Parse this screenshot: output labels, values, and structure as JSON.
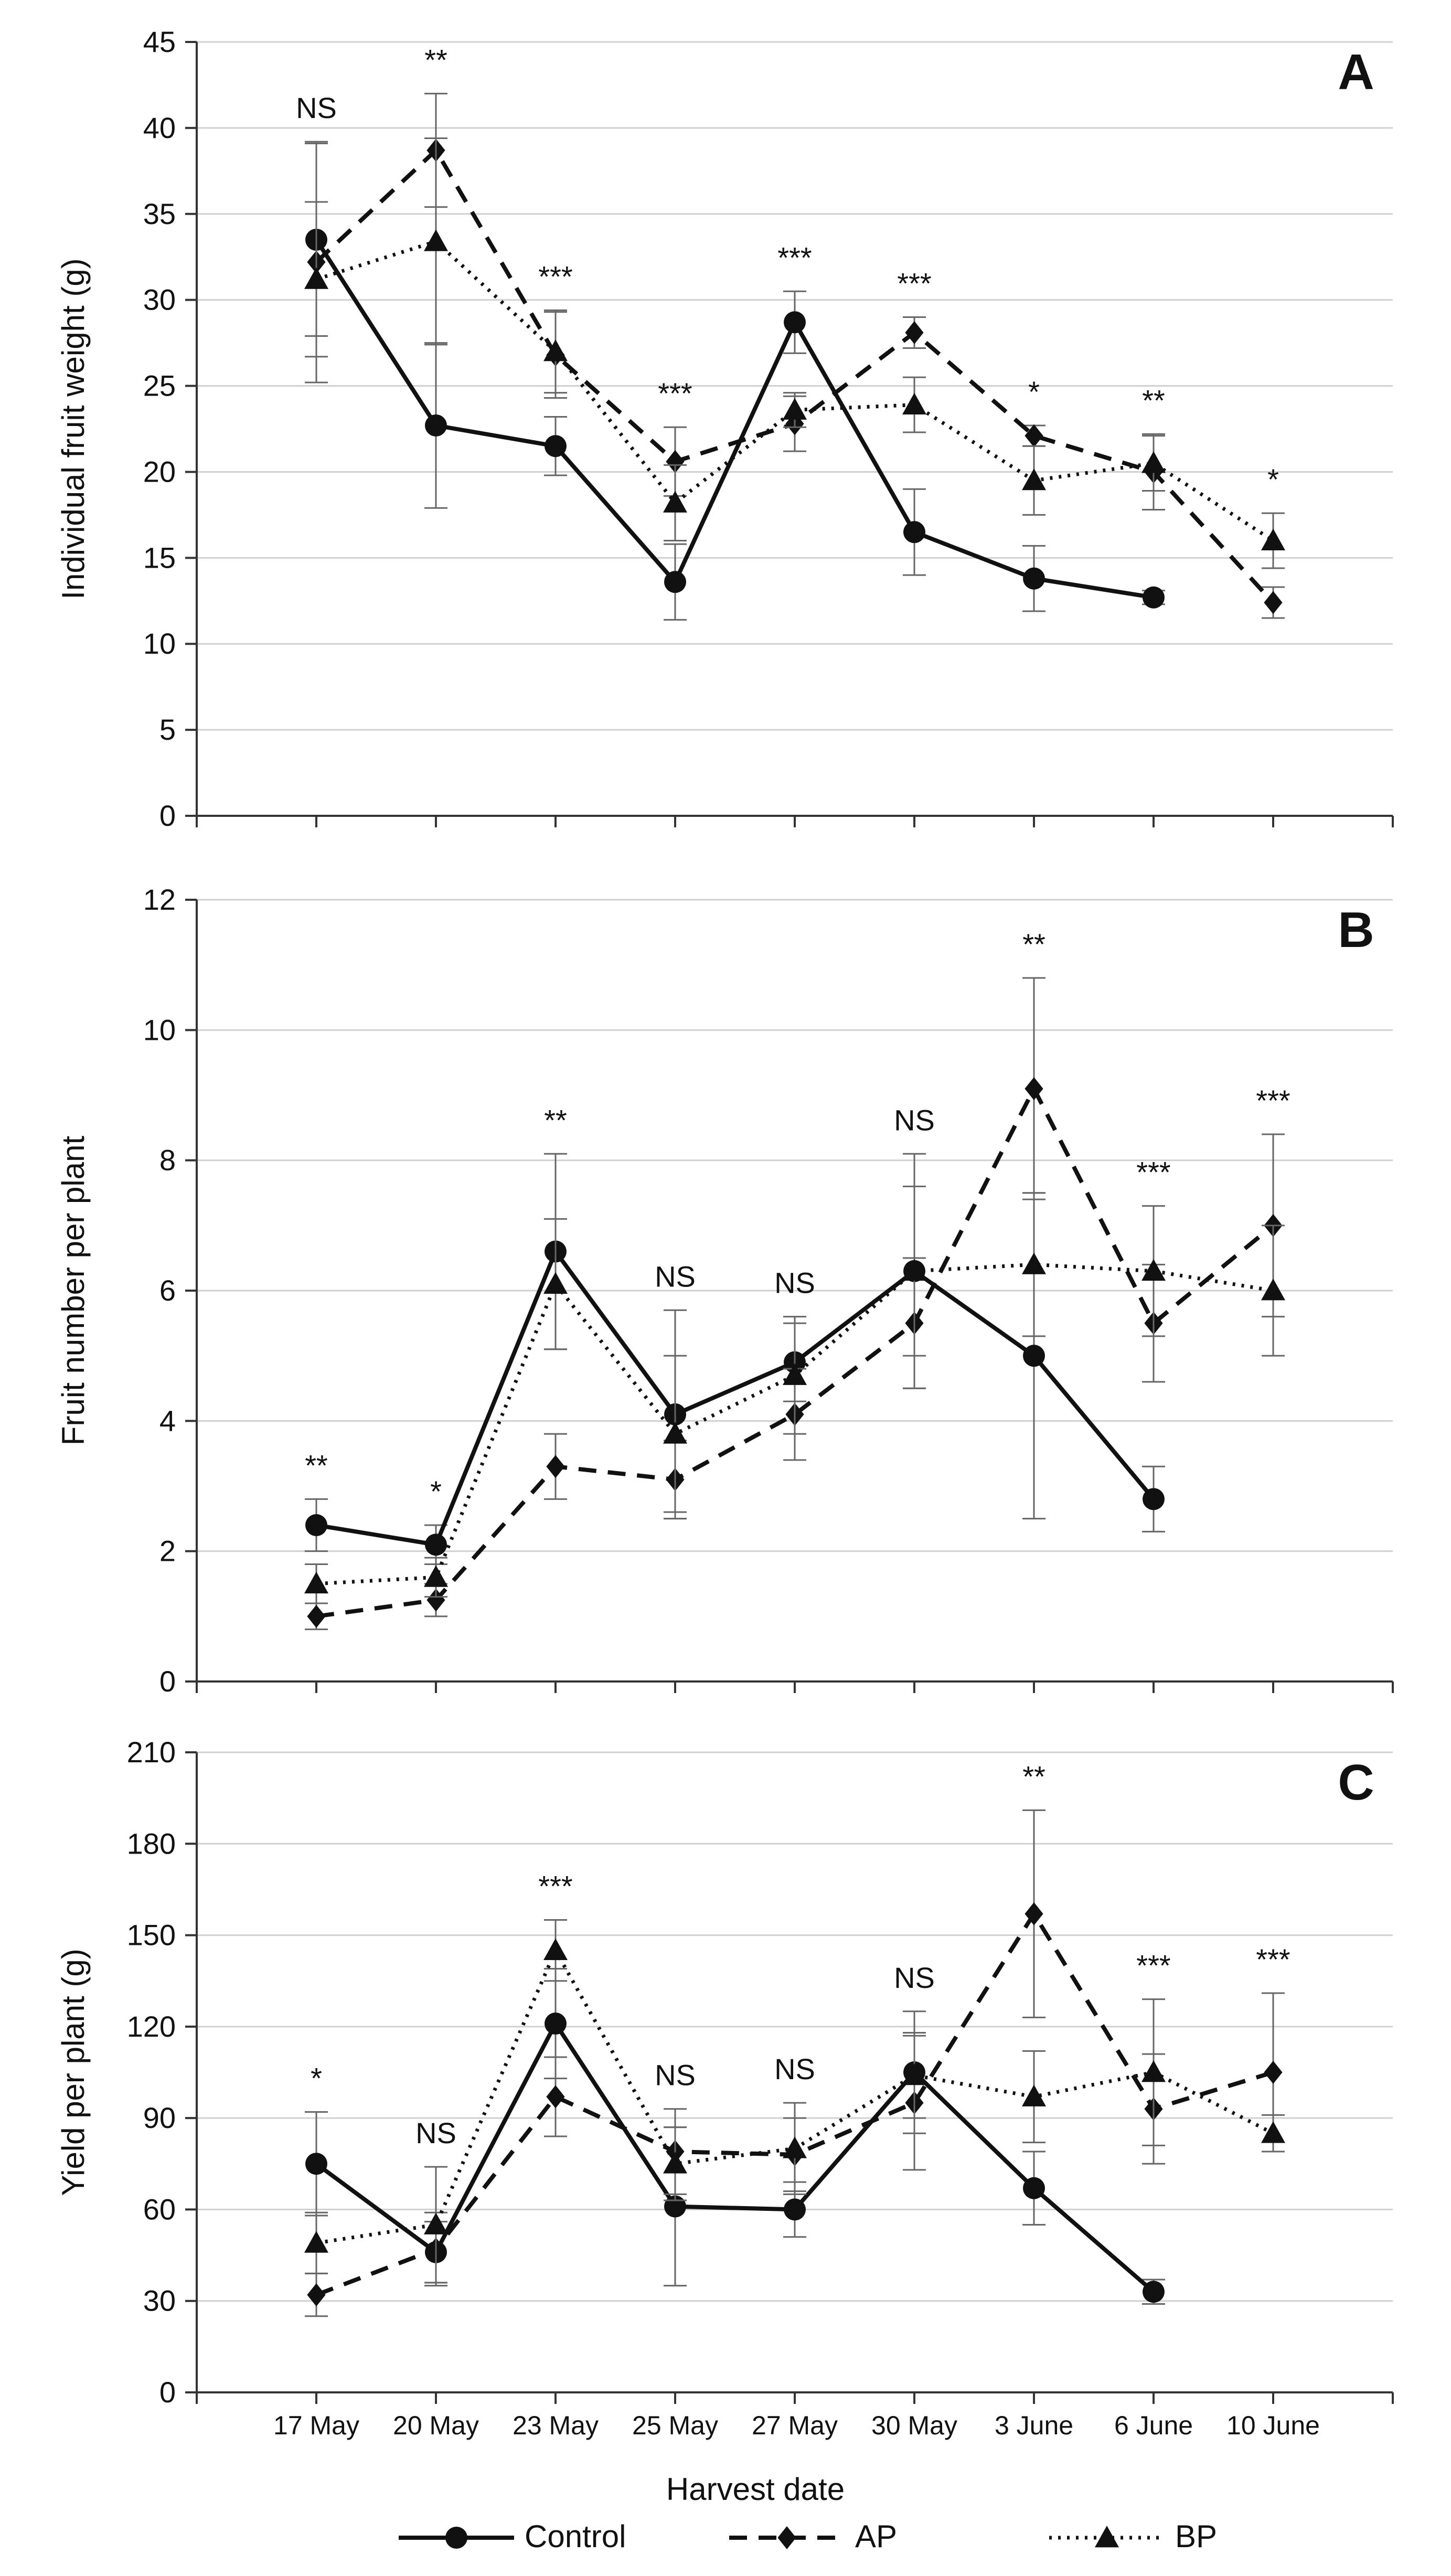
{
  "figure": {
    "xlabel": "Harvest date",
    "legend": [
      {
        "name": "Control",
        "style": "solid",
        "marker": "circle"
      },
      {
        "name": "AP",
        "style": "dashed",
        "marker": "diamond"
      },
      {
        "name": "BP",
        "style": "dotted",
        "marker": "triangle"
      }
    ]
  },
  "chart_data": [
    {
      "type": "line",
      "panel_label": "A",
      "ylabel": "Individual fruit weight (g)",
      "ylim": [
        0,
        45
      ],
      "ystep": 5,
      "grid": true,
      "categories": [
        "17 May",
        "20 May",
        "23 May",
        "25  May",
        "27 May",
        "30 May",
        "3 June",
        "6 June",
        "10 June"
      ],
      "series": [
        {
          "name": "Control",
          "values": [
            33.5,
            22.7,
            21.5,
            13.6,
            28.7,
            16.5,
            13.8,
            12.7,
            null
          ],
          "errors": [
            5.6,
            4.8,
            1.7,
            2.2,
            1.8,
            2.5,
            1.9,
            0.4,
            null
          ]
        },
        {
          "name": "AP",
          "values": [
            32.2,
            38.7,
            26.8,
            20.6,
            22.8,
            28.1,
            22.1,
            20.0,
            12.4
          ],
          "errors": [
            7.0,
            3.3,
            2.5,
            2.0,
            1.6,
            0.9,
            0.6,
            2.2,
            0.9
          ]
        },
        {
          "name": "BP",
          "values": [
            31.2,
            33.4,
            27.0,
            18.2,
            23.6,
            23.9,
            19.5,
            20.5,
            16.0
          ],
          "errors": [
            4.5,
            6.0,
            2.4,
            2.2,
            1.0,
            1.6,
            2.0,
            1.6,
            1.6
          ]
        }
      ],
      "annotations": [
        "NS",
        "**",
        "***",
        "***",
        "***",
        "***",
        "*",
        "**",
        "*"
      ]
    },
    {
      "type": "line",
      "panel_label": "B",
      "ylabel": "Fruit number per plant",
      "ylim": [
        0,
        12
      ],
      "ystep": 2,
      "grid": true,
      "categories": [
        "17 May",
        "20 May",
        "23 May",
        "25  May",
        "27 May",
        "30 May",
        "3 June",
        "6 June",
        "10 June"
      ],
      "series": [
        {
          "name": "Control",
          "values": [
            2.4,
            2.1,
            6.6,
            4.1,
            4.9,
            6.3,
            5.0,
            2.8,
            null
          ],
          "errors": [
            0.4,
            0.3,
            1.5,
            1.6,
            0.6,
            1.8,
            2.5,
            0.5,
            null
          ]
        },
        {
          "name": "AP",
          "values": [
            1.0,
            1.25,
            3.3,
            3.1,
            4.1,
            5.5,
            9.1,
            5.5,
            7.0
          ],
          "errors": [
            0.2,
            0.25,
            0.5,
            0.6,
            0.7,
            1.0,
            1.7,
            0.9,
            1.4
          ]
        },
        {
          "name": "BP",
          "values": [
            1.5,
            1.6,
            6.1,
            3.8,
            4.7,
            6.3,
            6.4,
            6.3,
            6.0
          ],
          "errors": [
            0.3,
            0.3,
            1.0,
            1.2,
            0.9,
            1.3,
            1.1,
            1.0,
            1.0
          ]
        }
      ],
      "annotations": [
        "**",
        "*",
        "**",
        "NS",
        "NS",
        "NS",
        "**",
        "***",
        "***"
      ]
    },
    {
      "type": "line",
      "panel_label": "C",
      "ylabel": "Yield per plant (g)",
      "xlabel": "Harvest date",
      "ylim": [
        0,
        210
      ],
      "ystep": 30,
      "grid": true,
      "categories": [
        "17 May",
        "20 May",
        "23 May",
        "25  May",
        "27 May",
        "30 May",
        "3 June",
        "6 June",
        "10 June"
      ],
      "series": [
        {
          "name": "Control",
          "values": [
            75,
            46,
            121,
            61,
            60,
            105,
            67,
            33,
            null
          ],
          "errors": [
            17,
            10,
            18,
            26,
            9,
            20,
            12,
            4,
            null
          ]
        },
        {
          "name": "AP",
          "values": [
            32,
            47,
            97,
            79,
            78,
            95,
            157,
            93,
            105
          ],
          "errors": [
            7,
            12,
            13,
            14,
            12,
            22,
            34,
            18,
            26
          ]
        },
        {
          "name": "BP",
          "values": [
            49,
            55,
            145,
            75,
            80,
            104,
            97,
            105,
            85
          ],
          "errors": [
            10,
            19,
            10,
            12,
            15,
            14,
            15,
            24,
            6
          ]
        }
      ],
      "annotations": [
        "*",
        "NS",
        "***",
        "NS",
        "NS",
        "NS",
        "**",
        "***",
        "***"
      ]
    }
  ]
}
